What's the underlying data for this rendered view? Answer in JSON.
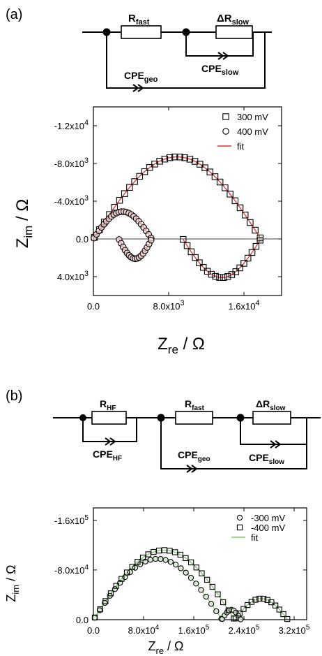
{
  "panels": [
    {
      "label": "(a)",
      "circuit": {
        "elements": [
          {
            "id": "r_fast",
            "main": "R",
            "sub": "fast"
          },
          {
            "id": "dr_slow",
            "main": "ΔR",
            "sub": "slow"
          },
          {
            "id": "cpe_slow",
            "main": "CPE",
            "sub": "slow"
          },
          {
            "id": "cpe_geo",
            "main": "CPE",
            "sub": "geo"
          }
        ]
      }
    },
    {
      "label": "(b)",
      "circuit": {
        "elements": [
          {
            "id": "r_hf",
            "main": "R",
            "sub": "HF"
          },
          {
            "id": "cpe_hf",
            "main": "CPE",
            "sub": "HF"
          },
          {
            "id": "r_fast",
            "main": "R",
            "sub": "fast"
          },
          {
            "id": "dr_slow",
            "main": "ΔR",
            "sub": "slow"
          },
          {
            "id": "cpe_geo",
            "main": "CPE",
            "sub": "geo"
          },
          {
            "id": "cpe_slow",
            "main": "CPE",
            "sub": "slow"
          }
        ]
      }
    }
  ],
  "chart_data": [
    {
      "type": "scatter",
      "title": "",
      "xlabel": {
        "main": "Z",
        "sub": "re",
        "rest": " / Ω"
      },
      "ylabel": {
        "main": "Z",
        "sub": "im",
        "rest": " / Ω"
      },
      "xlim": [
        0,
        20000
      ],
      "ylim": [
        -14000,
        6000
      ],
      "y_inverted": true,
      "zero_line": true,
      "grid": false,
      "legend_position": "top-right",
      "xticks": [
        {
          "value": 0,
          "label": "0.0",
          "exp": ""
        },
        {
          "value": 8000,
          "label": "8.0x10",
          "exp": "3"
        },
        {
          "value": 16000,
          "label": "1.6x10",
          "exp": "4"
        }
      ],
      "yticks": [
        {
          "value": -12000,
          "label": "-1.2x10",
          "exp": "4"
        },
        {
          "value": -8000,
          "label": "-8.0x10",
          "exp": "3"
        },
        {
          "value": -4000,
          "label": "-4.0x10",
          "exp": "3"
        },
        {
          "value": 0,
          "label": "0.0",
          "exp": ""
        },
        {
          "value": 4000,
          "label": "4.0x10",
          "exp": "3"
        }
      ],
      "fit_color": "#e8312f",
      "series": [
        {
          "name": "300 mV",
          "marker": "square",
          "arcs": [
            {
              "r0": 0,
              "r": 17800,
              "peak": -8700,
              "from": 0.006,
              "to": 0.996,
              "n": 34
            },
            {
              "r0": 9500,
              "r": 8300,
              "peak": 4100,
              "from": 0.004,
              "to": 0.99,
              "n": 20
            }
          ]
        },
        {
          "name": "400 mV",
          "marker": "circle",
          "arcs": [
            {
              "r0": 0,
              "r": 6200,
              "peak": -2900,
              "from": 0.01,
              "to": 0.99,
              "n": 24
            },
            {
              "r0": 2700,
              "r": 3500,
              "peak": 2100,
              "from": 0.01,
              "to": 0.98,
              "n": 17
            }
          ]
        },
        {
          "name": "fit",
          "marker": "line"
        }
      ]
    },
    {
      "type": "scatter",
      "title": "",
      "xlabel": {
        "main": "Z",
        "sub": "re",
        "rest": " / Ω"
      },
      "ylabel": {
        "main": "Z",
        "sub": "im",
        "rest": " / Ω"
      },
      "xlim": [
        0,
        340000
      ],
      "ylim": [
        -180000,
        0
      ],
      "y_inverted": true,
      "zero_line": false,
      "grid": false,
      "legend_position": "top-right",
      "xticks": [
        {
          "value": 0,
          "label": "0.0",
          "exp": ""
        },
        {
          "value": 80000,
          "label": "8.0x10",
          "exp": "4"
        },
        {
          "value": 160000,
          "label": "1.6x10",
          "exp": "5"
        },
        {
          "value": 240000,
          "label": "2.4x10",
          "exp": "5"
        },
        {
          "value": 320000,
          "label": "3.2x10",
          "exp": "5"
        }
      ],
      "yticks": [
        {
          "value": -160000,
          "label": "-1.6x10",
          "exp": "5"
        },
        {
          "value": -80000,
          "label": "-8.0x10",
          "exp": "4"
        },
        {
          "value": 0,
          "label": "0.0",
          "exp": ""
        }
      ],
      "fit_color": "#7dc56b",
      "series": [
        {
          "name": "-300 mV",
          "marker": "circle",
          "arcs": [
            {
              "r0": 0,
              "r": 205000,
              "peak": -98000,
              "from": 0.01,
              "to": 0.995,
              "n": 26
            },
            {
              "r0": 205000,
              "r": 30000,
              "peak": -16000,
              "from": 0.02,
              "to": 0.99,
              "n": 9
            }
          ]
        },
        {
          "name": "-400 mV",
          "marker": "square",
          "arcs": [
            {
              "r0": 0,
              "r": 225000,
              "peak": -112000,
              "from": 0.01,
              "to": 0.995,
              "n": 27
            },
            {
              "r0": 225000,
              "r": 85000,
              "peak": -34000,
              "from": 0.02,
              "to": 0.99,
              "n": 14
            }
          ]
        },
        {
          "name": "fit",
          "marker": "line"
        }
      ]
    }
  ]
}
